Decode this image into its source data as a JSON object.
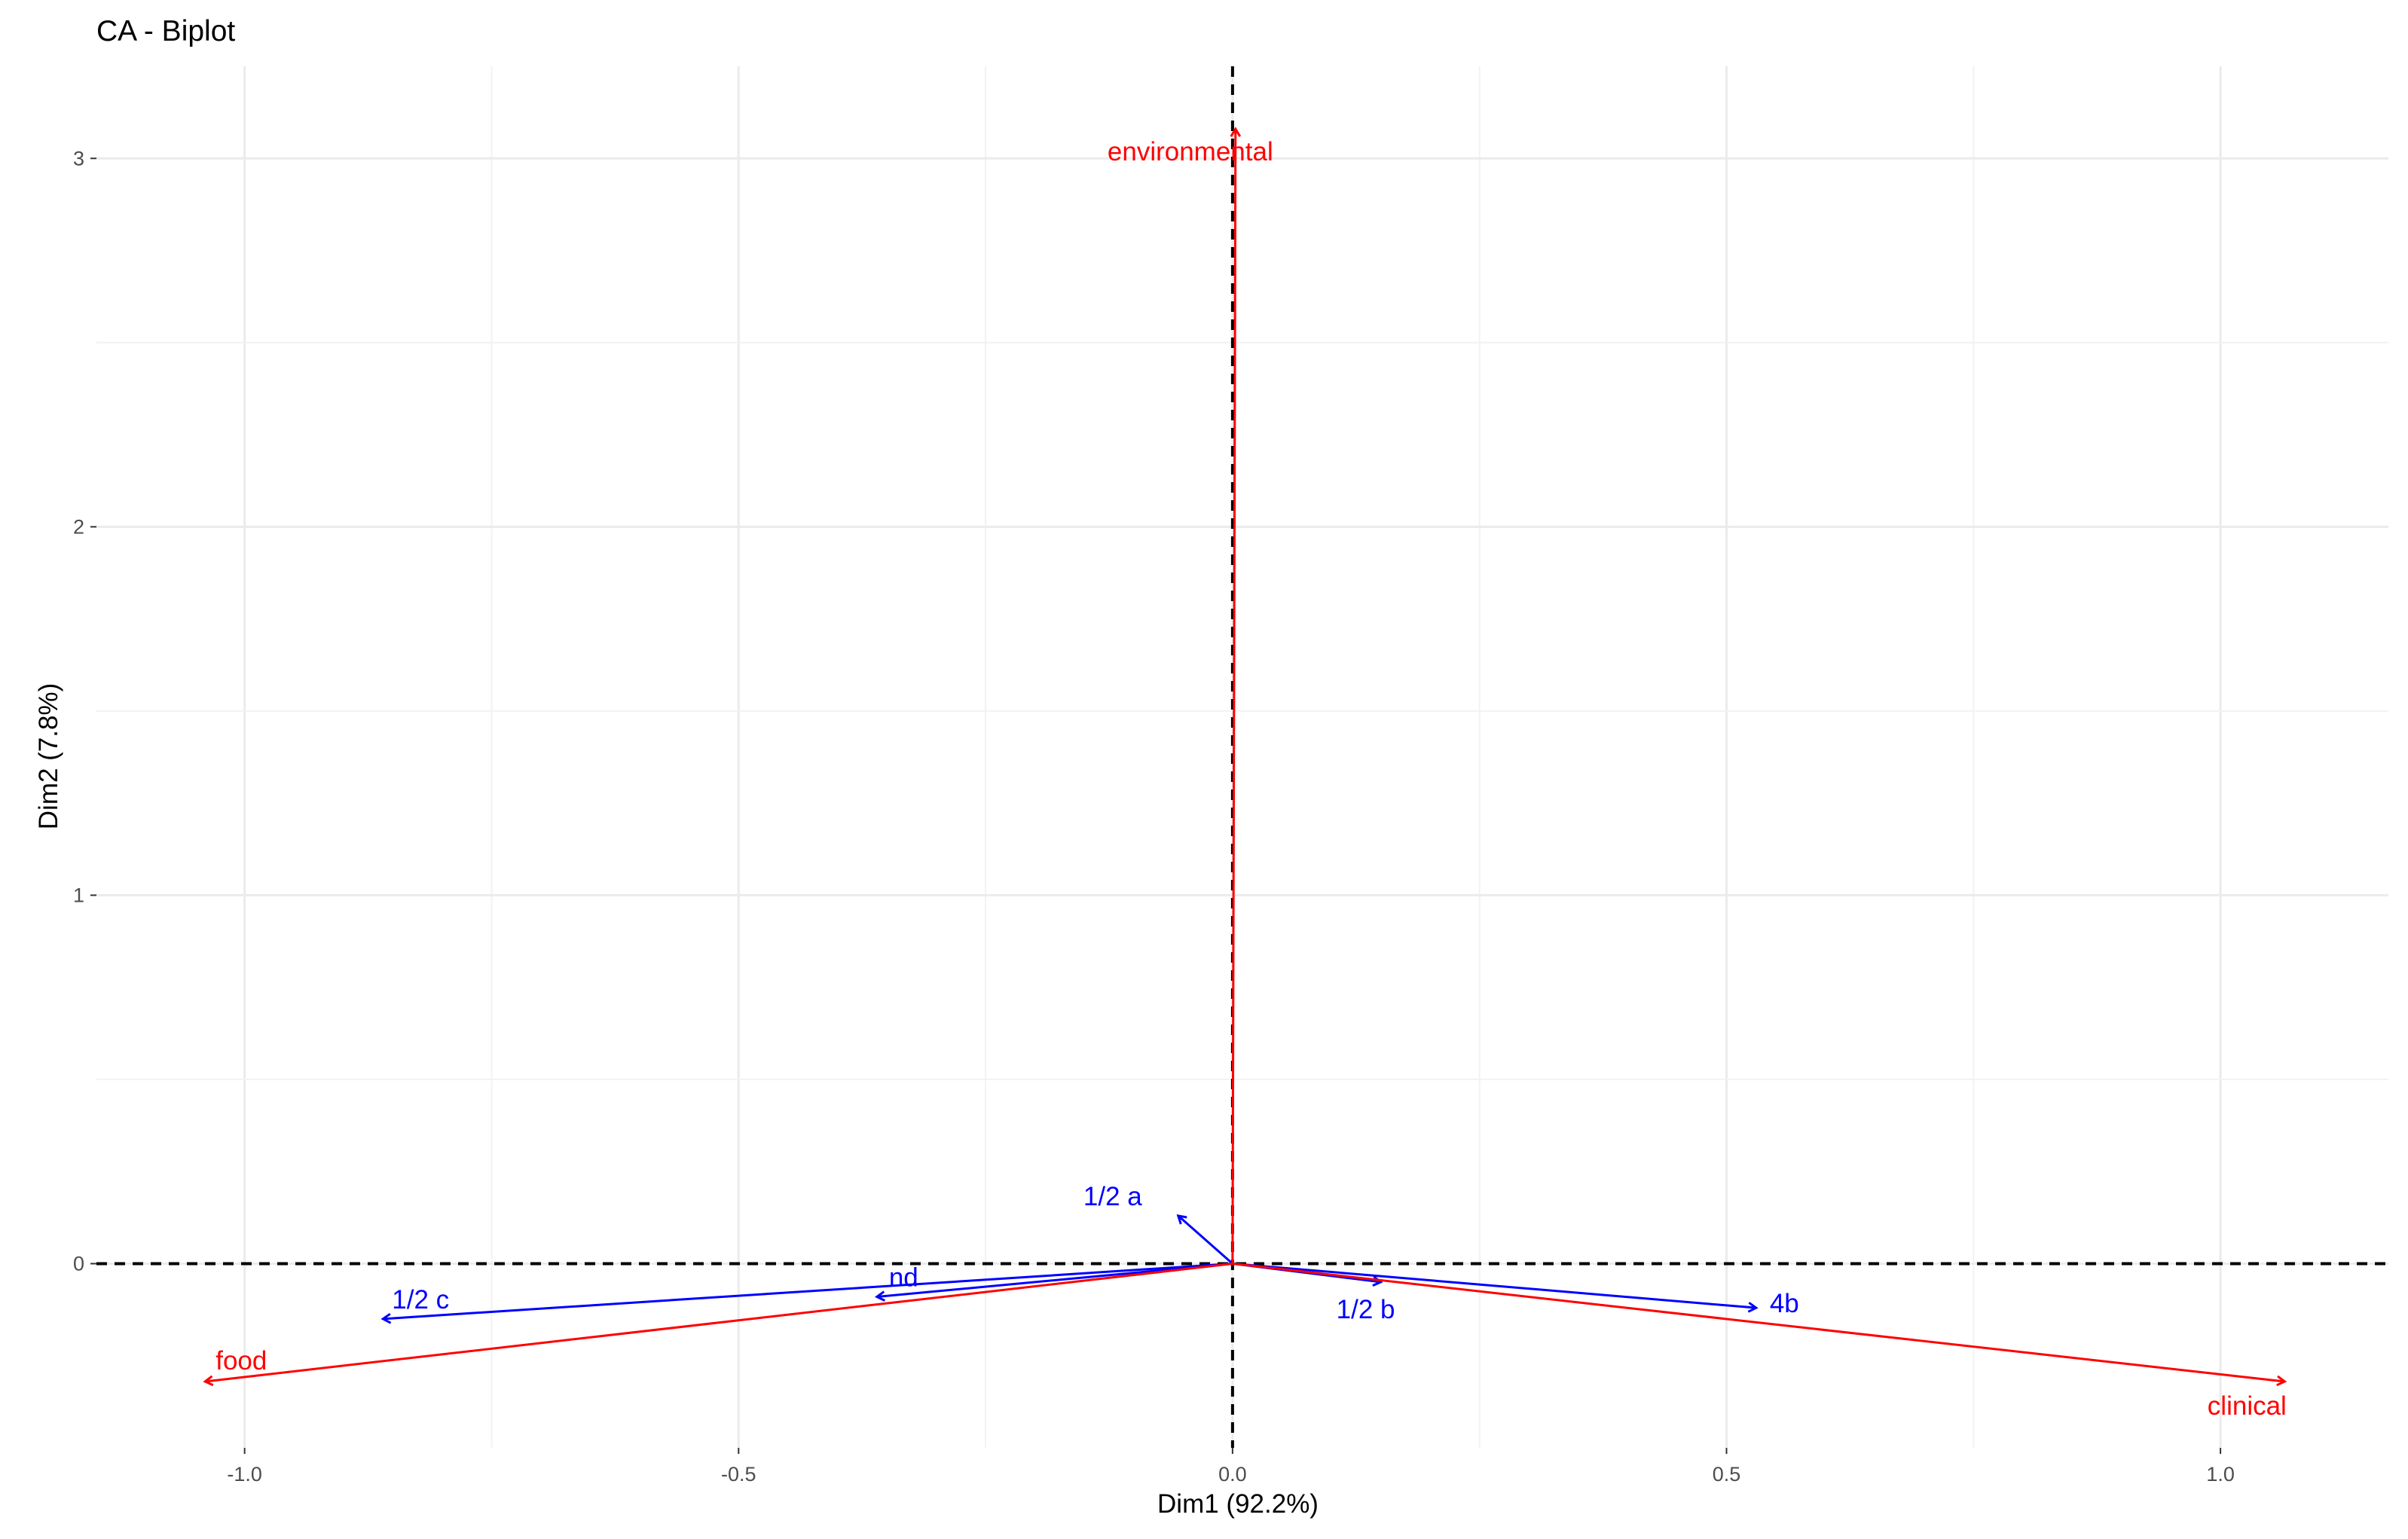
{
  "chart_data": {
    "type": "scatter",
    "title": "CA - Biplot",
    "xlabel": "Dim1 (92.2%)",
    "ylabel": "Dim2 (7.8%)",
    "xlim": [
      -1.15,
      1.17
    ],
    "ylim": [
      -0.5,
      3.25
    ],
    "x_ticks": [
      -1.0,
      -0.5,
      0.0,
      0.5,
      1.0
    ],
    "x_tick_labels": [
      "-1.0",
      "-0.5",
      "0.0",
      "0.5",
      "1.0"
    ],
    "y_ticks": [
      0,
      1,
      2,
      3
    ],
    "y_tick_labels": [
      "0",
      "1",
      "2",
      "3"
    ],
    "grid": true,
    "reference_lines": {
      "x": 0,
      "y": 0,
      "style": "dashed"
    },
    "series": [
      {
        "name": "",
        "color": "#0000ff",
        "points": [
          {
            "label": "1/2 a",
            "x": -0.055,
            "y": 0.13
          },
          {
            "label": "1/2 b",
            "x": 0.15,
            "y": -0.05
          },
          {
            "label": "1/2 c",
            "x": -0.86,
            "y": -0.15
          },
          {
            "label": "nd",
            "x": -0.36,
            "y": -0.09
          },
          {
            "label": "4b",
            "x": 0.53,
            "y": -0.12
          }
        ]
      },
      {
        "name": "",
        "color": "#ff0000",
        "points": [
          {
            "label": "environmental",
            "x": 0.003,
            "y": 3.08
          },
          {
            "label": "food",
            "x": -1.04,
            "y": -0.32
          },
          {
            "label": "clinical",
            "x": 1.065,
            "y": -0.32
          }
        ]
      }
    ]
  }
}
